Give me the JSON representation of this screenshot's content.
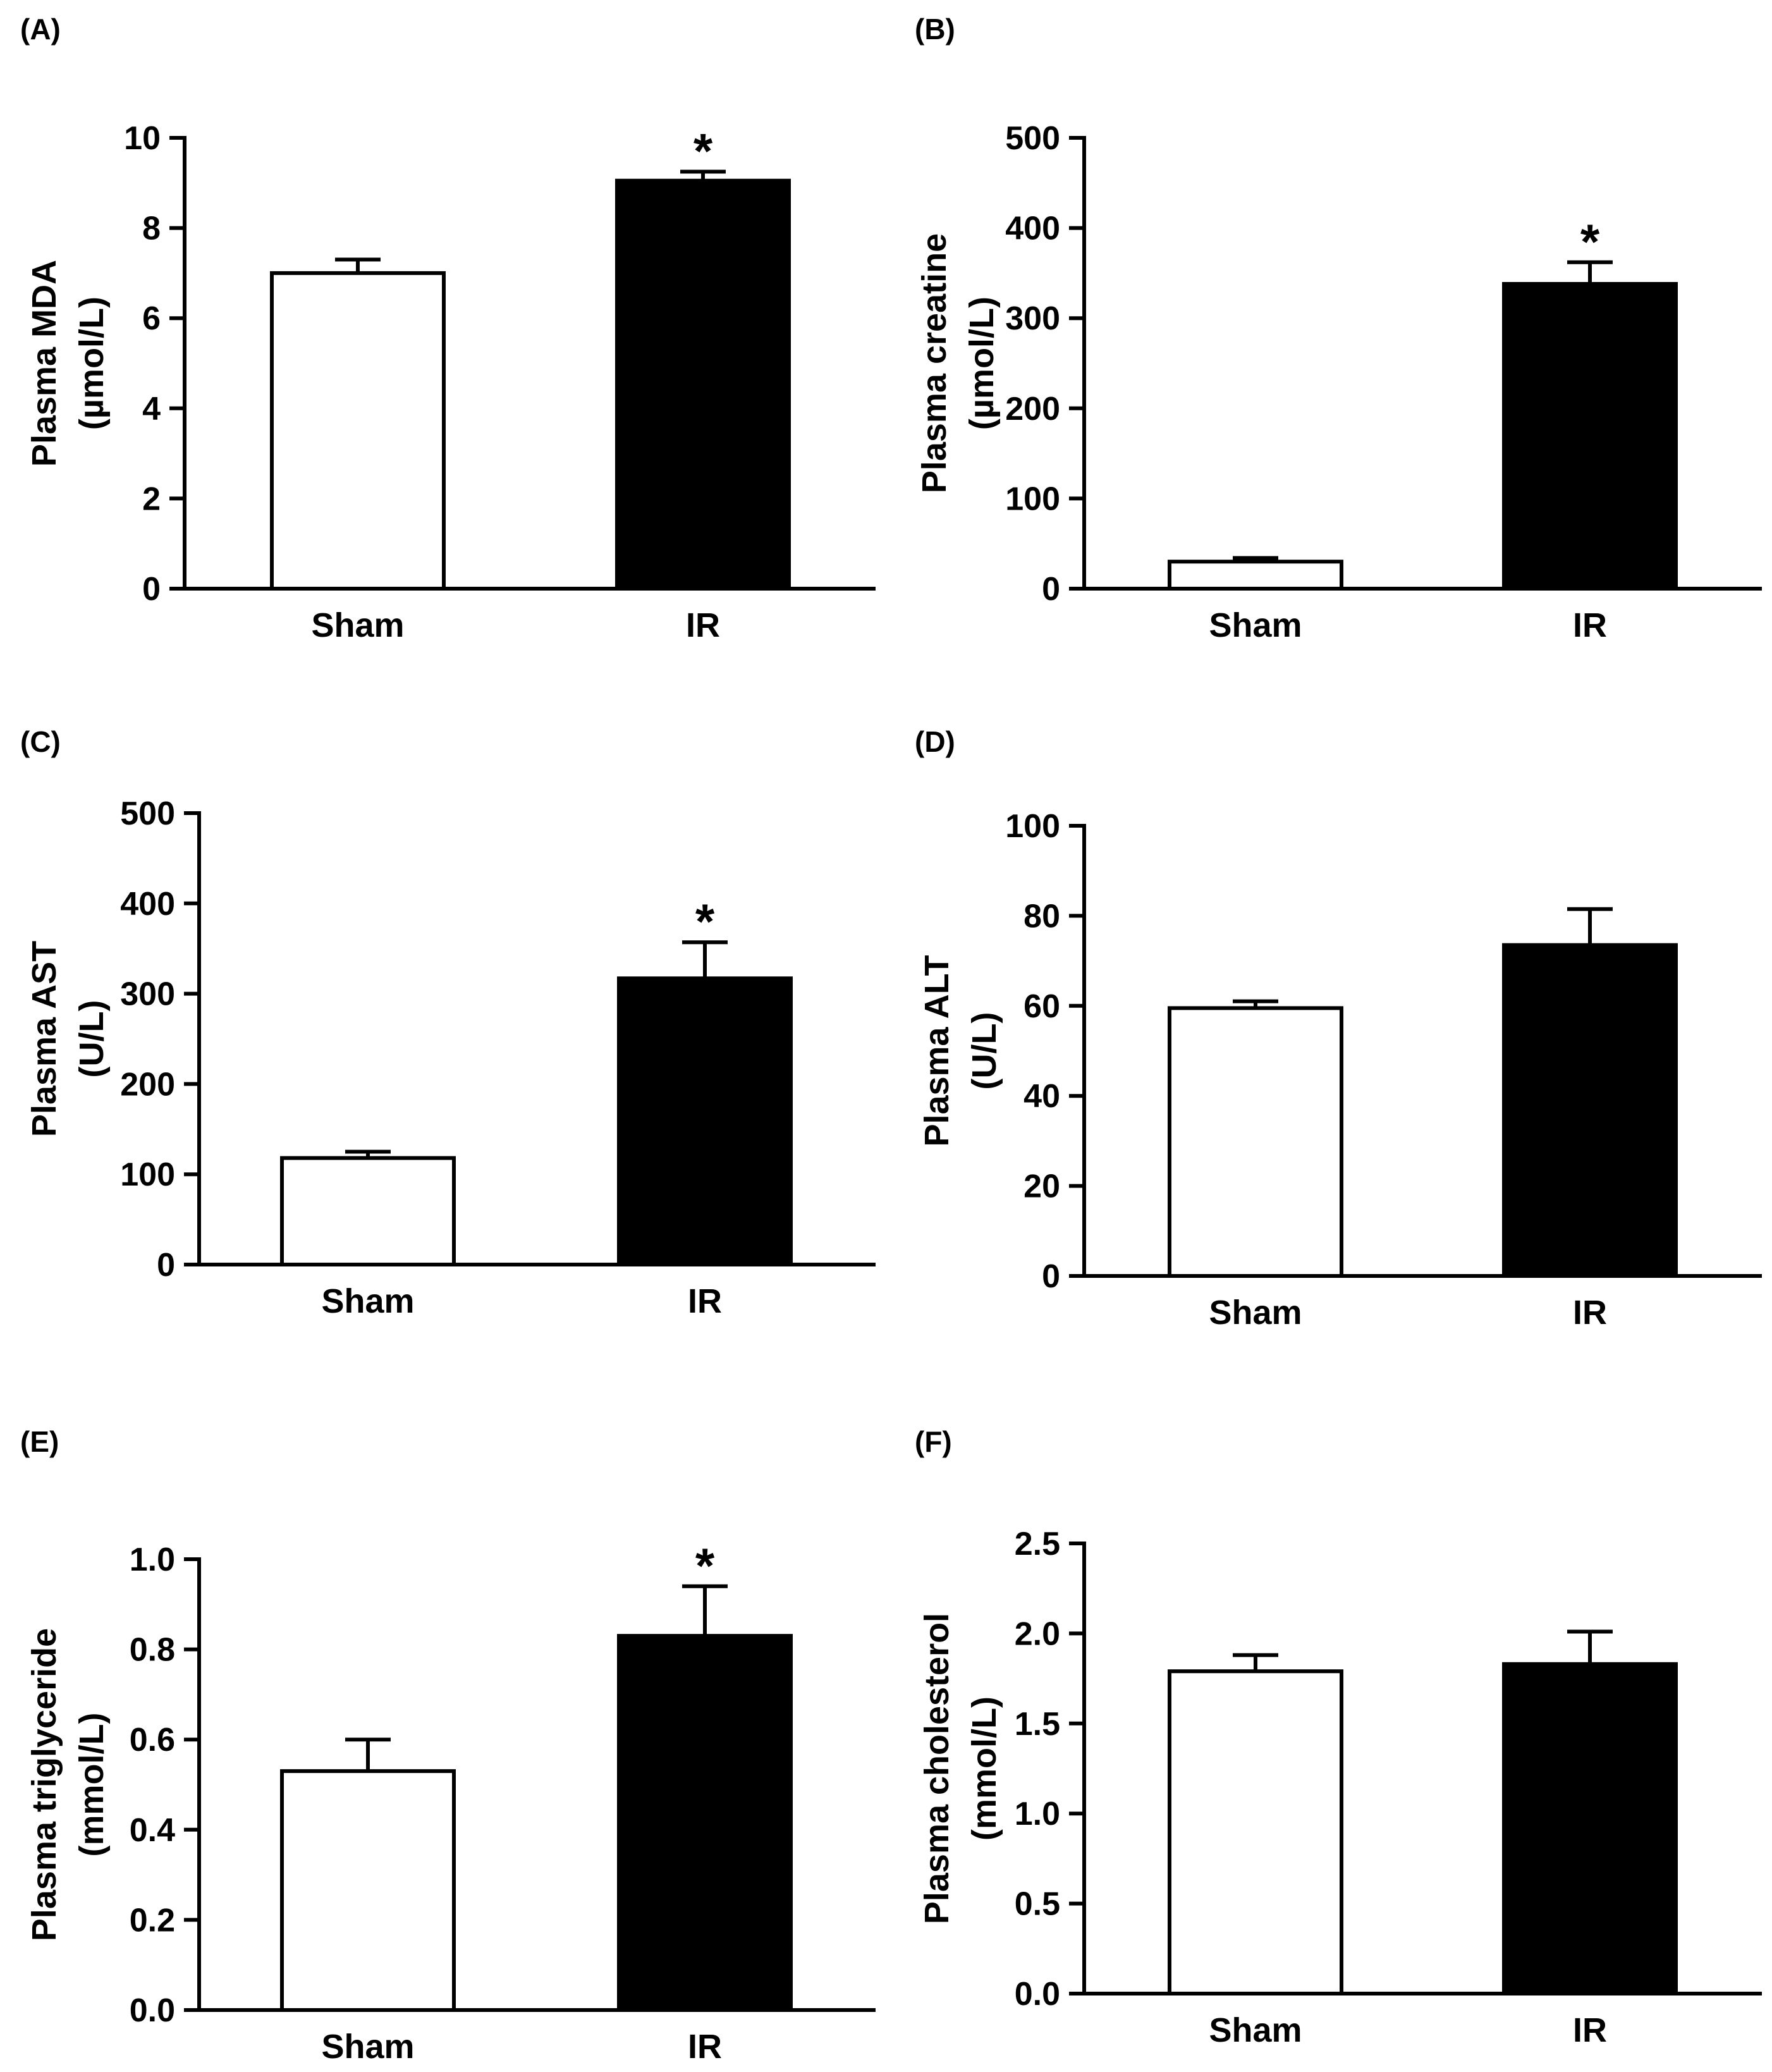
{
  "chart_data": [
    {
      "panel": "(A)",
      "type": "bar",
      "categories": [
        "Sham",
        "IR"
      ],
      "values": [
        7.0,
        9.05
      ],
      "errors": [
        0.3,
        0.2
      ],
      "bar_colors": [
        "#ffffff",
        "#000000"
      ],
      "significance": [
        "",
        "*"
      ],
      "ylabel": [
        "Plasma MDA",
        "(µmol/L)"
      ],
      "ylim": [
        0,
        10
      ],
      "yticks": [
        0,
        2,
        4,
        6,
        8,
        10
      ],
      "ytick_labels": [
        "0",
        "2",
        "4",
        "6",
        "8",
        "10"
      ]
    },
    {
      "panel": "(B)",
      "type": "bar",
      "categories": [
        "Sham",
        "IR"
      ],
      "values": [
        30,
        338
      ],
      "errors": [
        4,
        24
      ],
      "bar_colors": [
        "#ffffff",
        "#000000"
      ],
      "significance": [
        "",
        "*"
      ],
      "ylabel": [
        "Plasma creatine",
        "(µmol/L)"
      ],
      "ylim": [
        0,
        500
      ],
      "yticks": [
        0,
        100,
        200,
        300,
        400,
        500
      ],
      "ytick_labels": [
        "0",
        "100",
        "200",
        "300",
        "400",
        "500"
      ]
    },
    {
      "panel": "(C)",
      "type": "bar",
      "categories": [
        "Sham",
        "IR"
      ],
      "values": [
        118,
        317
      ],
      "errors": [
        7,
        40
      ],
      "bar_colors": [
        "#ffffff",
        "#000000"
      ],
      "significance": [
        "",
        "*"
      ],
      "ylabel": [
        "Plasma AST",
        "(U/L)"
      ],
      "ylim": [
        0,
        500
      ],
      "yticks": [
        0,
        100,
        200,
        300,
        400,
        500
      ],
      "ytick_labels": [
        "0",
        "100",
        "200",
        "300",
        "400",
        "500"
      ]
    },
    {
      "panel": "(D)",
      "type": "bar",
      "categories": [
        "Sham",
        "IR"
      ],
      "values": [
        59.5,
        73.5
      ],
      "errors": [
        1.5,
        8
      ],
      "bar_colors": [
        "#ffffff",
        "#000000"
      ],
      "significance": [
        "",
        ""
      ],
      "ylabel": [
        "Plasma ALT",
        "(U/L)"
      ],
      "ylim": [
        0,
        100
      ],
      "yticks": [
        0,
        20,
        40,
        60,
        80,
        100
      ],
      "ytick_labels": [
        "0",
        "20",
        "40",
        "60",
        "80",
        "100"
      ]
    },
    {
      "panel": "(E)",
      "type": "bar",
      "categories": [
        "Sham",
        "IR"
      ],
      "values": [
        0.53,
        0.83
      ],
      "errors": [
        0.07,
        0.11
      ],
      "bar_colors": [
        "#ffffff",
        "#000000"
      ],
      "significance": [
        "",
        "*"
      ],
      "ylabel": [
        "Plasma triglyceride",
        "(mmol/L)"
      ],
      "ylim": [
        0,
        1.0
      ],
      "yticks": [
        0,
        0.2,
        0.4,
        0.6,
        0.8,
        1.0
      ],
      "ytick_labels": [
        "0.0",
        "0.2",
        "0.4",
        "0.6",
        "0.8",
        "1.0"
      ]
    },
    {
      "panel": "(F)",
      "type": "bar",
      "categories": [
        "Sham",
        "IR"
      ],
      "values": [
        1.79,
        1.83
      ],
      "errors": [
        0.09,
        0.18
      ],
      "bar_colors": [
        "#ffffff",
        "#000000"
      ],
      "significance": [
        "",
        ""
      ],
      "ylabel": [
        "Plasma cholesterol",
        "(mmol/L)"
      ],
      "ylim": [
        0,
        2.5
      ],
      "yticks": [
        0,
        0.5,
        1.0,
        1.5,
        2.0,
        2.5
      ],
      "ytick_labels": [
        "0.0",
        "0.5",
        "1.0",
        "1.5",
        "2.0",
        "2.5"
      ]
    }
  ]
}
